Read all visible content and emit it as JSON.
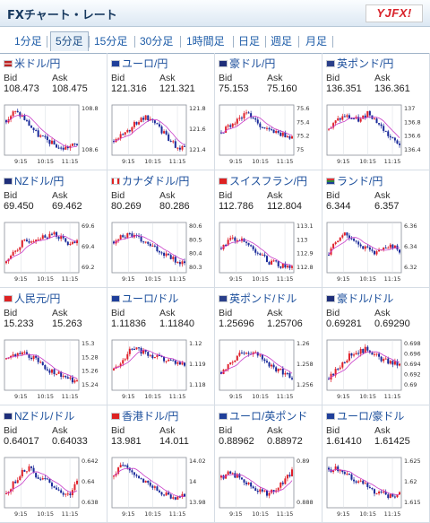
{
  "header": {
    "title": "FXチャート・レート",
    "logo_text": "YJFX!"
  },
  "tabs": [
    {
      "label": "1分足",
      "active": false
    },
    {
      "label": "5分足",
      "active": true
    },
    {
      "label": "15分足",
      "active": false
    },
    {
      "label": "30分足",
      "active": false
    },
    {
      "label": "1時間足",
      "active": false
    },
    {
      "label": "日足",
      "active": false
    },
    {
      "label": "週足",
      "active": false
    },
    {
      "label": "月足",
      "active": false
    }
  ],
  "labels": {
    "bid": "Bid",
    "ask": "Ask"
  },
  "colors": {
    "up": "#e0202a",
    "down": "#1a2a9a",
    "ma": "#c83cc8",
    "pair_text": "#1c4f9c"
  },
  "pairs": [
    {
      "name": "米ドル/円",
      "bid": "108.473",
      "ask": "108.475",
      "x_ticks": [
        "9:15",
        "10:15",
        "11:15"
      ],
      "y_ticks": [
        "108.8",
        "108.6"
      ]
    },
    {
      "name": "ユーロ/円",
      "bid": "121.316",
      "ask": "121.321",
      "x_ticks": [
        "9:15",
        "10:15",
        "11:15"
      ],
      "y_ticks": [
        "121.8",
        "121.6",
        "121.4"
      ]
    },
    {
      "name": "豪ドル/円",
      "bid": "75.153",
      "ask": "75.160",
      "x_ticks": [
        "9:15",
        "10:15",
        "11:15"
      ],
      "y_ticks": [
        "75.6",
        "75.4",
        "75.2",
        "75"
      ]
    },
    {
      "name": "英ポンド/円",
      "bid": "136.351",
      "ask": "136.361",
      "x_ticks": [
        "9:15",
        "10:15",
        "11:15"
      ],
      "y_ticks": [
        "137",
        "136.8",
        "136.6",
        "136.4"
      ]
    },
    {
      "name": "NZドル/円",
      "bid": "69.450",
      "ask": "69.462",
      "x_ticks": [
        "9:15",
        "10:15",
        "11:15"
      ],
      "y_ticks": [
        "69.6",
        "69.4",
        "69.2"
      ]
    },
    {
      "name": "カナダドル/円",
      "bid": "80.269",
      "ask": "80.286",
      "x_ticks": [
        "9:15",
        "10:15",
        "11:15"
      ],
      "y_ticks": [
        "80.6",
        "80.5",
        "80.4",
        "80.3"
      ]
    },
    {
      "name": "スイスフラン/円",
      "bid": "112.786",
      "ask": "112.804",
      "x_ticks": [
        "9:15",
        "10:15",
        "11:15"
      ],
      "y_ticks": [
        "113.1",
        "113",
        "112.9",
        "112.8"
      ]
    },
    {
      "name": "ランド/円",
      "bid": "6.344",
      "ask": "6.357",
      "x_ticks": [
        "9:15",
        "10:15",
        "11:15"
      ],
      "y_ticks": [
        "6.36",
        "6.34",
        "6.32"
      ]
    },
    {
      "name": "人民元/円",
      "bid": "15.233",
      "ask": "15.263",
      "x_ticks": [
        "9:15",
        "10:15",
        "11:15"
      ],
      "y_ticks": [
        "15.3",
        "15.28",
        "15.26",
        "15.24"
      ]
    },
    {
      "name": "ユーロ/ドル",
      "bid": "1.11836",
      "ask": "1.11840",
      "x_ticks": [
        "9:15",
        "10:15",
        "11:15"
      ],
      "y_ticks": [
        "1.12",
        "1.119",
        "1.118"
      ]
    },
    {
      "name": "英ポンド/ドル",
      "bid": "1.25696",
      "ask": "1.25706",
      "x_ticks": [
        "9:15",
        "10:15",
        "11:15"
      ],
      "y_ticks": [
        "1.26",
        "1.258",
        "1.256"
      ]
    },
    {
      "name": "豪ドル/ドル",
      "bid": "0.69281",
      "ask": "0.69290",
      "x_ticks": [
        "9:15",
        "10:15",
        "11:15"
      ],
      "y_ticks": [
        "0.698",
        "0.696",
        "0.694",
        "0.692",
        "0.69"
      ]
    },
    {
      "name": "NZドル/ドル",
      "bid": "0.64017",
      "ask": "0.64033",
      "x_ticks": [
        "9:15",
        "10:15",
        "11:15"
      ],
      "y_ticks": [
        "0.642",
        "0.64",
        "0.638"
      ]
    },
    {
      "name": "香港ドル/円",
      "bid": "13.981",
      "ask": "14.011",
      "x_ticks": [
        "9:15",
        "10:15",
        "11:15"
      ],
      "y_ticks": [
        "14.02",
        "14",
        "13.98"
      ]
    },
    {
      "name": "ユーロ/英ポンド",
      "bid": "0.88962",
      "ask": "0.88972",
      "x_ticks": [
        "9:15",
        "10:15",
        "11:15"
      ],
      "y_ticks": [
        "0.89",
        "0.888"
      ]
    },
    {
      "name": "ユーロ/豪ドル",
      "bid": "1.61410",
      "ask": "1.61425",
      "x_ticks": [
        "9:15",
        "10:15",
        "11:15"
      ],
      "y_ticks": [
        "1.625",
        "1.62",
        "1.615"
      ]
    }
  ]
}
